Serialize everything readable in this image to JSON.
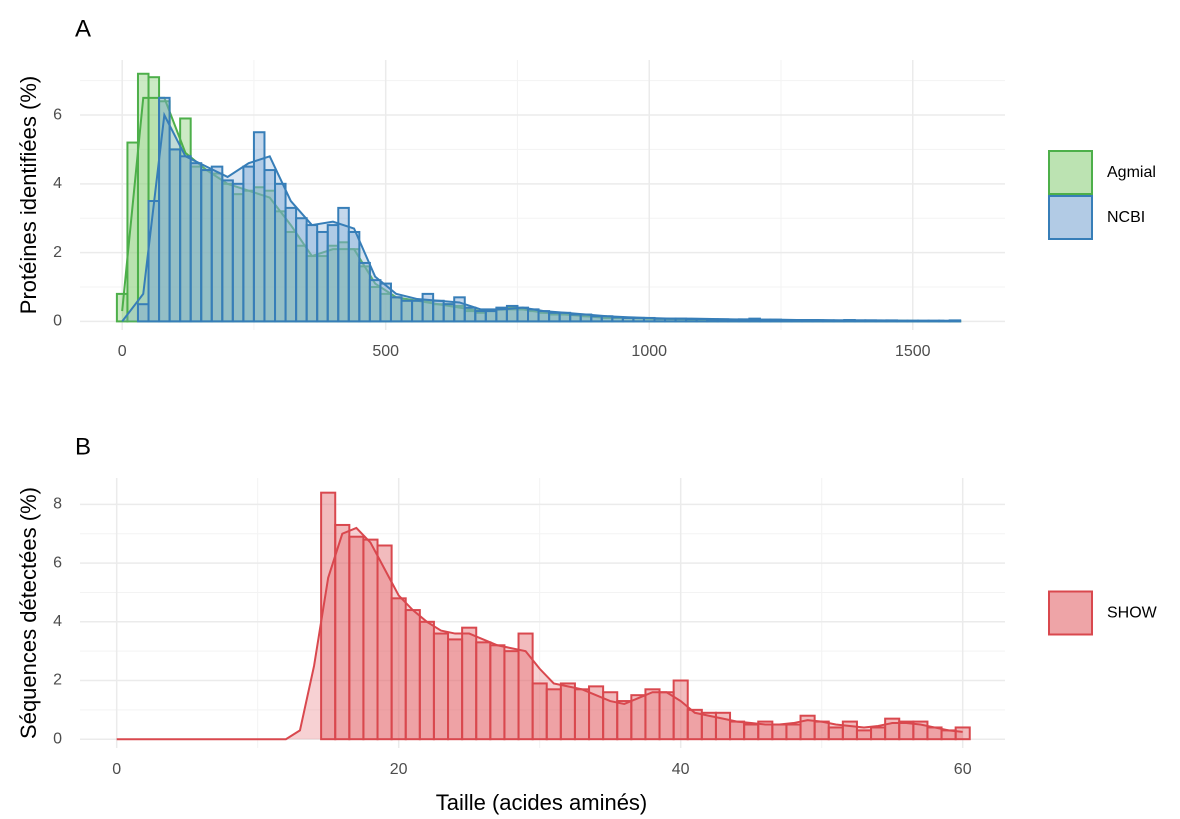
{
  "chart_data": [
    {
      "type": "histogram",
      "title": "A",
      "ylabel": "Protéines identifiées (%)",
      "bins": [
        -10,
        10,
        30,
        50,
        70,
        90,
        110,
        130,
        150,
        170,
        190,
        210,
        230,
        250,
        270,
        290,
        310,
        330,
        350,
        370,
        390,
        410,
        430,
        450,
        470,
        490,
        510,
        530,
        550,
        570,
        590,
        610,
        630,
        650,
        670,
        690,
        710,
        730,
        750,
        770,
        790,
        810,
        830,
        850,
        870,
        890,
        910,
        930,
        950,
        970,
        990,
        1010,
        1030,
        1050,
        1070,
        1090,
        1110,
        1130,
        1150,
        1170,
        1190,
        1210,
        1230,
        1250,
        1270,
        1290,
        1310,
        1330,
        1350,
        1370,
        1390,
        1410,
        1430,
        1450,
        1470,
        1490,
        1510,
        1530,
        1550,
        1570,
        1590
      ],
      "density_x": [
        0,
        40,
        80,
        120,
        160,
        200,
        240,
        280,
        320,
        360,
        400,
        440,
        480,
        520,
        560,
        600,
        640,
        680,
        720,
        760,
        800,
        840,
        880,
        920,
        960,
        1000,
        1040,
        1080,
        1120,
        1160,
        1200,
        1240,
        1280,
        1320,
        1360,
        1400,
        1440,
        1480,
        1520,
        1560
      ],
      "series": [
        {
          "name": "Agmial",
          "color": "#4daf4a",
          "fill": "#8fd17f",
          "values": [
            0.8,
            5.2,
            7.2,
            7.1,
            6.4,
            5.0,
            5.9,
            4.5,
            4.4,
            4.3,
            4.0,
            3.7,
            3.8,
            3.9,
            3.8,
            3.2,
            2.6,
            2.2,
            1.9,
            1.9,
            2.2,
            2.3,
            2.1,
            1.6,
            1.0,
            0.8,
            0.7,
            0.6,
            0.6,
            0.6,
            0.5,
            0.5,
            0.45,
            0.3,
            0.25,
            0.3,
            0.35,
            0.4,
            0.35,
            0.3,
            0.25,
            0.2,
            0.2,
            0.2,
            0.15,
            0.15,
            0.1,
            0.1,
            0.1,
            0.1,
            0.08,
            0.08,
            0.07,
            0.07,
            0.06,
            0.06,
            0.05,
            0.05,
            0.05,
            0.04,
            0.04,
            0.04,
            0.03,
            0.03,
            0.03,
            0.03,
            0.02,
            0.02,
            0.02,
            0.02,
            0.02,
            0.02,
            0.02,
            0.02,
            0.01,
            0.01,
            0.01,
            0.01,
            0.01,
            0.01
          ],
          "density": [
            0.3,
            6.5,
            6.5,
            4.9,
            4.4,
            4.0,
            3.8,
            3.6,
            2.8,
            1.9,
            2.1,
            2.1,
            1.1,
            0.7,
            0.6,
            0.5,
            0.4,
            0.3,
            0.35,
            0.35,
            0.25,
            0.2,
            0.15,
            0.1,
            0.1,
            0.08,
            0.07,
            0.06,
            0.05,
            0.05,
            0.04,
            0.04,
            0.03,
            0.03,
            0.02,
            0.02,
            0.02,
            0.02,
            0.01,
            0.01
          ]
        },
        {
          "name": "NCBI",
          "color": "#377eb8",
          "fill": "#7fa8d4",
          "values": [
            0,
            0,
            0.5,
            3.5,
            6.5,
            5.0,
            4.8,
            4.6,
            4.4,
            4.5,
            4.1,
            4.0,
            4.5,
            5.5,
            4.4,
            4.0,
            3.3,
            3.0,
            2.8,
            2.6,
            2.8,
            3.3,
            2.6,
            1.7,
            1.2,
            1.1,
            0.7,
            0.6,
            0.6,
            0.8,
            0.6,
            0.5,
            0.7,
            0.4,
            0.3,
            0.3,
            0.4,
            0.45,
            0.4,
            0.35,
            0.3,
            0.25,
            0.25,
            0.2,
            0.2,
            0.15,
            0.15,
            0.12,
            0.1,
            0.1,
            0.1,
            0.08,
            0.08,
            0.08,
            0.07,
            0.07,
            0.06,
            0.06,
            0.05,
            0.06,
            0.08,
            0.05,
            0.05,
            0.04,
            0.04,
            0.04,
            0.03,
            0.03,
            0.03,
            0.04,
            0.03,
            0.03,
            0.02,
            0.03,
            0.02,
            0.02,
            0.02,
            0.02,
            0.02,
            0.03
          ],
          "density": [
            0,
            0.8,
            6.0,
            4.8,
            4.5,
            4.2,
            4.6,
            4.8,
            3.5,
            2.8,
            2.9,
            2.7,
            1.3,
            0.8,
            0.65,
            0.6,
            0.55,
            0.35,
            0.35,
            0.4,
            0.3,
            0.25,
            0.2,
            0.15,
            0.12,
            0.1,
            0.08,
            0.08,
            0.07,
            0.06,
            0.05,
            0.05,
            0.04,
            0.04,
            0.03,
            0.03,
            0.03,
            0.02,
            0.02,
            0.02
          ]
        }
      ],
      "xlim": [
        -80,
        1675
      ],
      "ylim": [
        -0.25,
        7.6
      ],
      "xticks": [
        0,
        500,
        1000,
        1500
      ],
      "yticks": [
        0,
        2,
        4,
        6
      ],
      "xminor": [
        250,
        750,
        1250
      ],
      "yminor": [
        1,
        3,
        5,
        7
      ]
    },
    {
      "type": "histogram",
      "title": "B",
      "ylabel": "Séquences détectées (%)",
      "xlabel": "Taille (acides aminés)",
      "bins": [
        14.5,
        15.5,
        16.5,
        17.5,
        18.5,
        19.5,
        20.5,
        21.5,
        22.5,
        23.5,
        24.5,
        25.5,
        26.5,
        27.5,
        28.5,
        29.5,
        30.5,
        31.5,
        32.5,
        33.5,
        34.5,
        35.5,
        36.5,
        37.5,
        38.5,
        39.5,
        40.5,
        41.5,
        42.5,
        43.5,
        44.5,
        45.5,
        46.5,
        47.5,
        48.5,
        49.5,
        50.5,
        51.5,
        52.5,
        53.5,
        54.5,
        55.5,
        56.5,
        57.5,
        58.5,
        59.5,
        60.5
      ],
      "density_x": [
        0,
        1,
        2,
        3,
        4,
        5,
        6,
        7,
        8,
        9,
        10,
        11,
        12,
        13,
        14,
        15,
        16,
        17,
        18,
        19,
        20,
        21,
        22,
        23,
        24,
        25,
        26,
        27,
        28,
        29,
        30,
        31,
        32,
        33,
        34,
        35,
        36,
        37,
        38,
        39,
        40,
        41,
        42,
        43,
        44,
        45,
        46,
        47,
        48,
        49,
        50,
        51,
        52,
        53,
        54,
        55,
        56,
        57,
        58,
        59,
        60
      ],
      "series": [
        {
          "name": "SHOW",
          "color": "#d9484e",
          "fill": "#e3686d",
          "values": [
            8.4,
            7.3,
            6.9,
            6.8,
            6.6,
            4.8,
            4.4,
            4.0,
            3.6,
            3.4,
            3.8,
            3.3,
            3.2,
            3.0,
            3.6,
            1.9,
            1.7,
            1.9,
            1.7,
            1.8,
            1.6,
            1.3,
            1.5,
            1.7,
            1.6,
            2.0,
            1.0,
            0.9,
            0.9,
            0.6,
            0.5,
            0.6,
            0.5,
            0.5,
            0.8,
            0.6,
            0.4,
            0.6,
            0.3,
            0.4,
            0.7,
            0.6,
            0.6,
            0.4,
            0.3,
            0.4
          ],
          "density": [
            0,
            0,
            0,
            0,
            0,
            0,
            0,
            0,
            0,
            0,
            0,
            0,
            0,
            0.3,
            2.5,
            5.5,
            7.0,
            7.2,
            6.7,
            5.8,
            4.9,
            4.4,
            4.0,
            3.7,
            3.6,
            3.6,
            3.4,
            3.2,
            3.1,
            3.0,
            2.4,
            1.9,
            1.8,
            1.7,
            1.5,
            1.3,
            1.2,
            1.4,
            1.6,
            1.6,
            1.3,
            0.9,
            0.8,
            0.7,
            0.6,
            0.55,
            0.5,
            0.5,
            0.55,
            0.65,
            0.6,
            0.5,
            0.45,
            0.4,
            0.45,
            0.55,
            0.55,
            0.5,
            0.4,
            0.3,
            0.25
          ]
        }
      ],
      "xlim": [
        -2.6,
        63
      ],
      "ylim": [
        -0.3,
        8.9
      ],
      "xticks": [
        0,
        20,
        40,
        60
      ],
      "yticks": [
        0,
        2,
        4,
        6,
        8
      ],
      "xminor": [
        10,
        30,
        50
      ],
      "yminor": [
        1,
        3,
        5,
        7
      ]
    }
  ]
}
